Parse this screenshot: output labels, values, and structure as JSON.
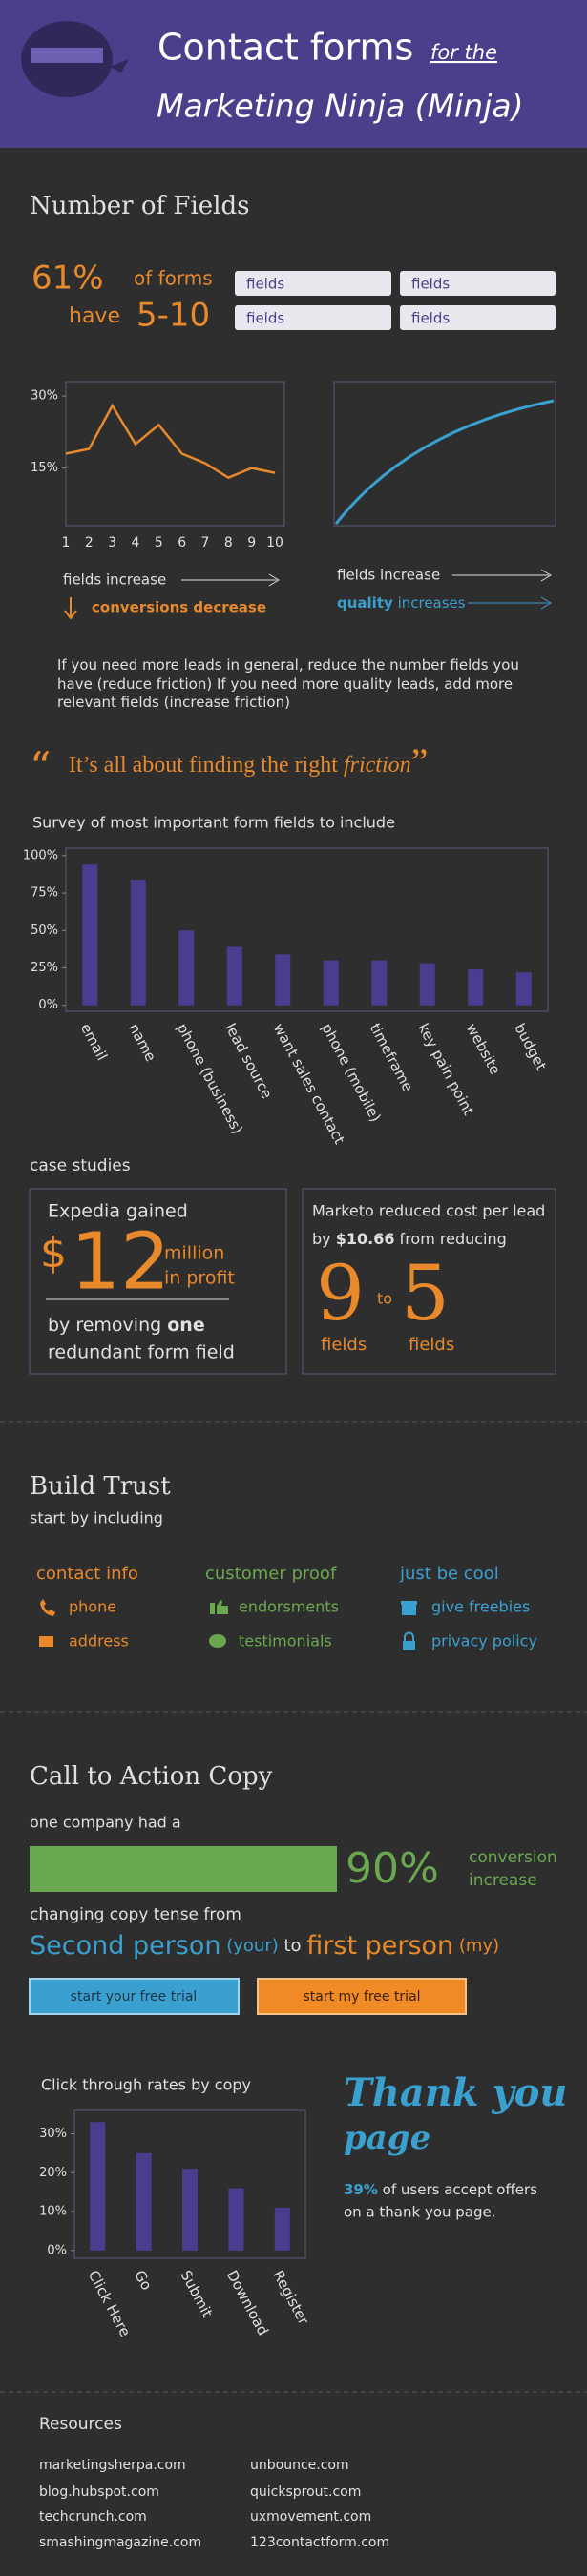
{
  "header": {
    "title": "Contact forms",
    "title_small": "for the",
    "subtitle": "Marketing Ninja (Minja)"
  },
  "fields": {
    "heading": "Number of Fields",
    "stat": "61%",
    "stat_text": "of forms",
    "have": "have",
    "range": "5-10",
    "field_labels": [
      "fields",
      "fields",
      "fields",
      "fields"
    ],
    "left_caption": "fields increase",
    "left_effect": "conversions decrease",
    "right_caption": "fields increase",
    "right_effect_strong": "quality",
    "right_effect": "increases",
    "advice": "If you need more leads in general, reduce the number fields you have (reduce friction) If you need more quality leads, add more relevant fields (increase friction)"
  },
  "quote": {
    "open_mark": "“",
    "text": "It’s all about finding the right ",
    "emphasis": "friction",
    "close_mark": "”"
  },
  "case_studies": {
    "heading": "case studies",
    "left": {
      "intro": "Expedia gained",
      "currency": "$",
      "amount": "12",
      "unit_1": "million",
      "unit_2": "in profit",
      "line_1": "by removing ",
      "line_1_strong": "one",
      "line_2": "redundant form field"
    },
    "right": {
      "line_1": "Marketo reduced cost per lead",
      "line_2a": "by ",
      "line_2_strong": "$10.66",
      "line_2b": " from reducing",
      "from": "9",
      "to": "to",
      "target": "5",
      "from_label": "fields",
      "target_label": "fields"
    }
  },
  "trust": {
    "heading": "Build Trust",
    "subheading": "start by including",
    "columns": [
      {
        "title": "contact info",
        "items": [
          "phone",
          "address"
        ]
      },
      {
        "title": "customer proof",
        "items": [
          "endorsments",
          "testimonials"
        ]
      },
      {
        "title": "just be cool",
        "items": [
          "give freebies",
          "privacy policy"
        ]
      }
    ]
  },
  "cta": {
    "heading": "Call to Action Copy",
    "intro": "one company had a",
    "stat": "90%",
    "stat_text_1": "conversion",
    "stat_text_2": "increase",
    "tense_intro": "changing copy tense from",
    "second": "Second person",
    "second_note": " (your)",
    "to": " to ",
    "first": "first person",
    "first_note": " (my)",
    "button_1": "start your free trial",
    "button_2": "start my free trial"
  },
  "thank_you": {
    "title_1": "Thank you",
    "title_2": "page",
    "stat": "39%",
    "text_1": " of users accept offers",
    "text_2": "on a thank you page."
  },
  "resources": {
    "heading": "Resources",
    "links": [
      "marketingsherpa.com",
      "unbounce.com",
      "blog.hubspot.com",
      "quicksprout.com",
      "techcrunch.com",
      "uxmovement.com",
      "smashingmagazine.com",
      "123contactform.com"
    ]
  },
  "chart_data": [
    {
      "type": "line",
      "x": [
        1,
        2,
        3,
        4,
        5,
        6,
        7,
        8,
        9,
        10
      ],
      "values": [
        18,
        19,
        28,
        20,
        24,
        18,
        16,
        13,
        15,
        14
      ],
      "color": "#e8892b",
      "xlim": [
        1,
        10
      ],
      "xticks": [
        1,
        2,
        3,
        4,
        5,
        6,
        7,
        8,
        9,
        10
      ],
      "ylim": [
        3,
        33
      ],
      "yticks": [
        {
          "value": 15,
          "label": "15%"
        },
        {
          "value": 30,
          "label": "30%"
        }
      ]
    },
    {
      "type": "bar",
      "title": "Survey of most important form fields to include",
      "categories": [
        "email",
        "name",
        "phone (business)",
        "lead source",
        "want sales contact",
        "phone (mobile)",
        "timeframe",
        "key pain point",
        "website",
        "budget"
      ],
      "values": [
        94,
        84,
        50,
        39,
        34,
        30,
        30,
        28,
        24,
        22
      ],
      "color": "#4a3d8f",
      "ylim": [
        -4,
        105
      ],
      "yticks": [
        {
          "value": 0,
          "label": "0%"
        },
        {
          "value": 25,
          "label": "25%"
        },
        {
          "value": 50,
          "label": "50%"
        },
        {
          "value": 75,
          "label": "75%"
        },
        {
          "value": 100,
          "label": "100%"
        }
      ]
    },
    {
      "type": "bar",
      "title": "Click through rates by copy",
      "categories": [
        "Click Here",
        "Go",
        "Submit",
        "Download",
        "Register"
      ],
      "values": [
        33,
        25,
        21,
        16,
        11
      ],
      "color": "#4a3d8f",
      "ylim": [
        -2,
        36
      ],
      "yticks": [
        {
          "value": 0,
          "label": "0%"
        },
        {
          "value": 10,
          "label": "10%"
        },
        {
          "value": 20,
          "label": "20%"
        },
        {
          "value": 30,
          "label": "30%"
        }
      ]
    }
  ]
}
